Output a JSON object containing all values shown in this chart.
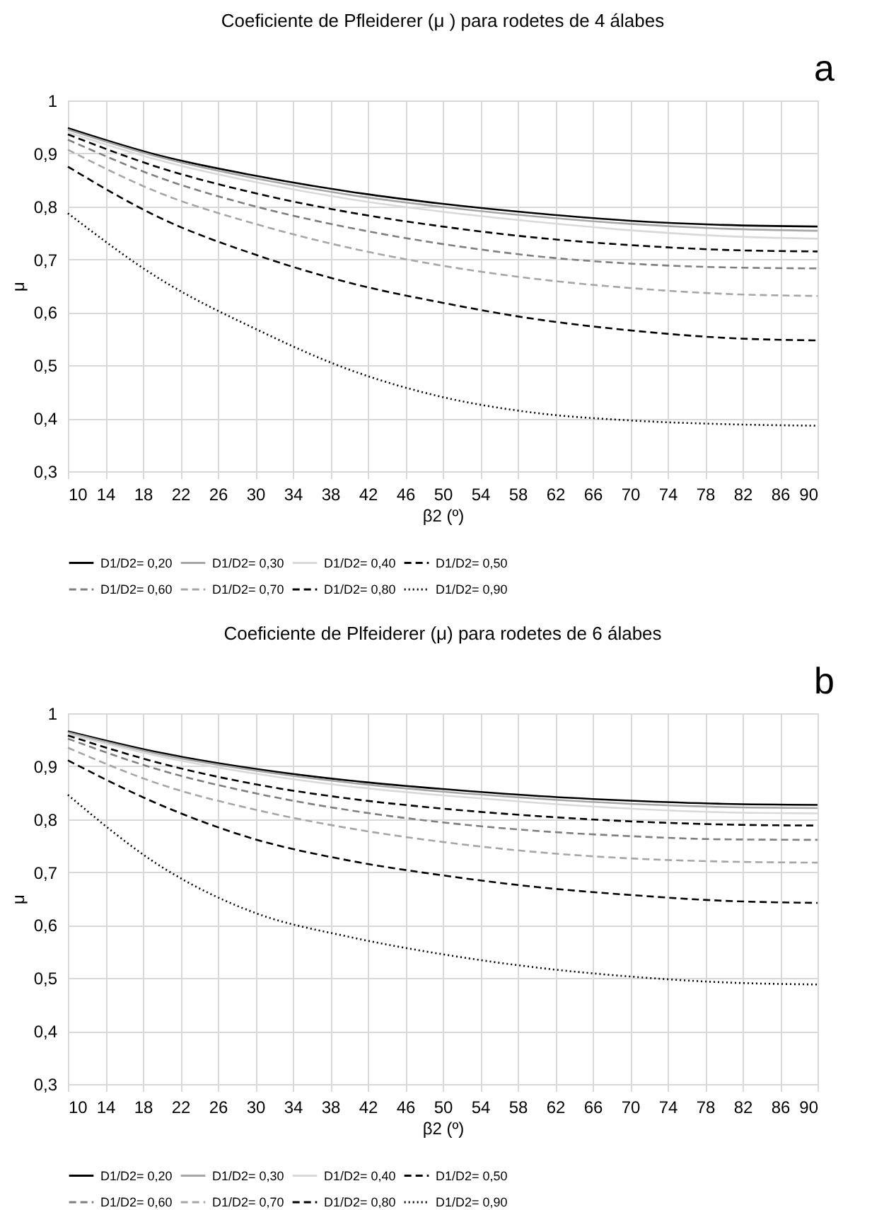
{
  "chart_data": [
    {
      "type": "line",
      "title": "Coeficiente de Pfleiderer  (μ ) para rodetes de 4 álabes",
      "xlabel": "β2 (º)",
      "ylabel": "μ",
      "annotations": [
        "a"
      ],
      "x": [
        10,
        20,
        30,
        40,
        50,
        60,
        70,
        80,
        90
      ],
      "xlim": [
        10,
        90
      ],
      "xticks": [
        10,
        14,
        18,
        22,
        26,
        30,
        34,
        38,
        42,
        46,
        50,
        54,
        58,
        62,
        66,
        70,
        74,
        78,
        82,
        86,
        90
      ],
      "ylim": [
        0.3,
        1
      ],
      "yticks": [
        {
          "value": 0.3,
          "label": "0,3"
        },
        {
          "value": 0.4,
          "label": "0,4"
        },
        {
          "value": 0.5,
          "label": "0,5"
        },
        {
          "value": 0.6,
          "label": "0,6"
        },
        {
          "value": 0.7,
          "label": "0,7"
        },
        {
          "value": 0.8,
          "label": "0,8"
        },
        {
          "value": 0.9,
          "label": "0,9"
        },
        1
      ],
      "grid": true,
      "legend": "bottom",
      "marker": "none",
      "series": [
        {
          "name": "D1/D2= 0,20",
          "color": "#000000",
          "line_style": "solid",
          "values": [
            0.948,
            0.895,
            0.858,
            0.828,
            0.805,
            0.787,
            0.773,
            0.765,
            0.762
          ]
        },
        {
          "name": "D1/D2= 0,30",
          "color": "#a6a6a6",
          "line_style": "solid",
          "values": [
            0.945,
            0.892,
            0.853,
            0.822,
            0.799,
            0.781,
            0.767,
            0.758,
            0.754
          ]
        },
        {
          "name": "D1/D2= 0,40",
          "color": "#d9d9d9",
          "line_style": "solid",
          "values": [
            0.94,
            0.886,
            0.846,
            0.814,
            0.79,
            0.771,
            0.755,
            0.744,
            0.739
          ]
        },
        {
          "name": "D1/D2= 0,50",
          "color": "#000000",
          "line_style": "dashed",
          "values": [
            0.936,
            0.872,
            0.825,
            0.789,
            0.762,
            0.741,
            0.727,
            0.718,
            0.715
          ]
        },
        {
          "name": "D1/D2= 0,60",
          "color": "#7f7f7f",
          "line_style": "dashed",
          "values": [
            0.926,
            0.853,
            0.8,
            0.76,
            0.729,
            0.706,
            0.692,
            0.685,
            0.683
          ]
        },
        {
          "name": "D1/D2= 0,70",
          "color": "#a6a6a6",
          "line_style": "dashed",
          "values": [
            0.907,
            0.824,
            0.767,
            0.722,
            0.688,
            0.663,
            0.646,
            0.635,
            0.631
          ]
        },
        {
          "name": "D1/D2= 0,80",
          "color": "#000000",
          "line_style": "dashed",
          "values": [
            0.875,
            0.777,
            0.709,
            0.656,
            0.618,
            0.587,
            0.566,
            0.552,
            0.547
          ]
        },
        {
          "name": "D1/D2= 0,90",
          "color": "#000000",
          "line_style": "dotted",
          "values": [
            0.787,
            0.661,
            0.569,
            0.492,
            0.44,
            0.41,
            0.396,
            0.389,
            0.386
          ]
        }
      ]
    },
    {
      "type": "line",
      "title": "Coeficiente de Plfeiderer  (μ) para rodetes de 6 álabes",
      "xlabel": "β2 (º)",
      "ylabel": "μ",
      "annotations": [
        "b"
      ],
      "x": [
        10,
        20,
        30,
        40,
        50,
        60,
        70,
        80,
        90
      ],
      "xlim": [
        10,
        90
      ],
      "xticks": [
        10,
        14,
        18,
        22,
        26,
        30,
        34,
        38,
        42,
        46,
        50,
        54,
        58,
        62,
        66,
        70,
        74,
        78,
        82,
        86,
        90
      ],
      "ylim": [
        0.3,
        1
      ],
      "yticks": [
        {
          "value": 0.3,
          "label": "0,3"
        },
        {
          "value": 0.4,
          "label": "0,4"
        },
        {
          "value": 0.5,
          "label": "0,5"
        },
        {
          "value": 0.6,
          "label": "0,6"
        },
        {
          "value": 0.7,
          "label": "0,7"
        },
        {
          "value": 0.8,
          "label": "0,8"
        },
        {
          "value": 0.9,
          "label": "0,9"
        },
        1
      ],
      "grid": true,
      "legend": "bottom",
      "marker": "none",
      "series": [
        {
          "name": "D1/D2= 0,20",
          "color": "#000000",
          "line_style": "solid",
          "values": [
            0.966,
            0.925,
            0.895,
            0.873,
            0.857,
            0.844,
            0.835,
            0.829,
            0.827
          ]
        },
        {
          "name": "D1/D2= 0,30",
          "color": "#a6a6a6",
          "line_style": "solid",
          "values": [
            0.964,
            0.922,
            0.892,
            0.869,
            0.852,
            0.839,
            0.829,
            0.823,
            0.821
          ]
        },
        {
          "name": "D1/D2= 0,40",
          "color": "#d9d9d9",
          "line_style": "solid",
          "values": [
            0.961,
            0.918,
            0.886,
            0.862,
            0.845,
            0.831,
            0.82,
            0.813,
            0.811
          ]
        },
        {
          "name": "D1/D2= 0,50",
          "color": "#000000",
          "line_style": "dashed",
          "values": [
            0.958,
            0.905,
            0.866,
            0.839,
            0.82,
            0.806,
            0.796,
            0.79,
            0.788
          ]
        },
        {
          "name": "D1/D2= 0,60",
          "color": "#7f7f7f",
          "line_style": "dashed",
          "values": [
            0.952,
            0.892,
            0.849,
            0.817,
            0.794,
            0.778,
            0.768,
            0.762,
            0.761
          ]
        },
        {
          "name": "D1/D2= 0,70",
          "color": "#a6a6a6",
          "line_style": "dashed",
          "values": [
            0.935,
            0.865,
            0.818,
            0.783,
            0.757,
            0.738,
            0.726,
            0.72,
            0.718
          ]
        },
        {
          "name": "D1/D2= 0,80",
          "color": "#000000",
          "line_style": "dashed",
          "values": [
            0.911,
            0.826,
            0.762,
            0.722,
            0.694,
            0.672,
            0.657,
            0.646,
            0.642
          ]
        },
        {
          "name": "D1/D2= 0,90",
          "color": "#000000",
          "line_style": "dotted",
          "values": [
            0.846,
            0.71,
            0.623,
            0.578,
            0.545,
            0.52,
            0.503,
            0.492,
            0.488
          ]
        }
      ]
    }
  ]
}
